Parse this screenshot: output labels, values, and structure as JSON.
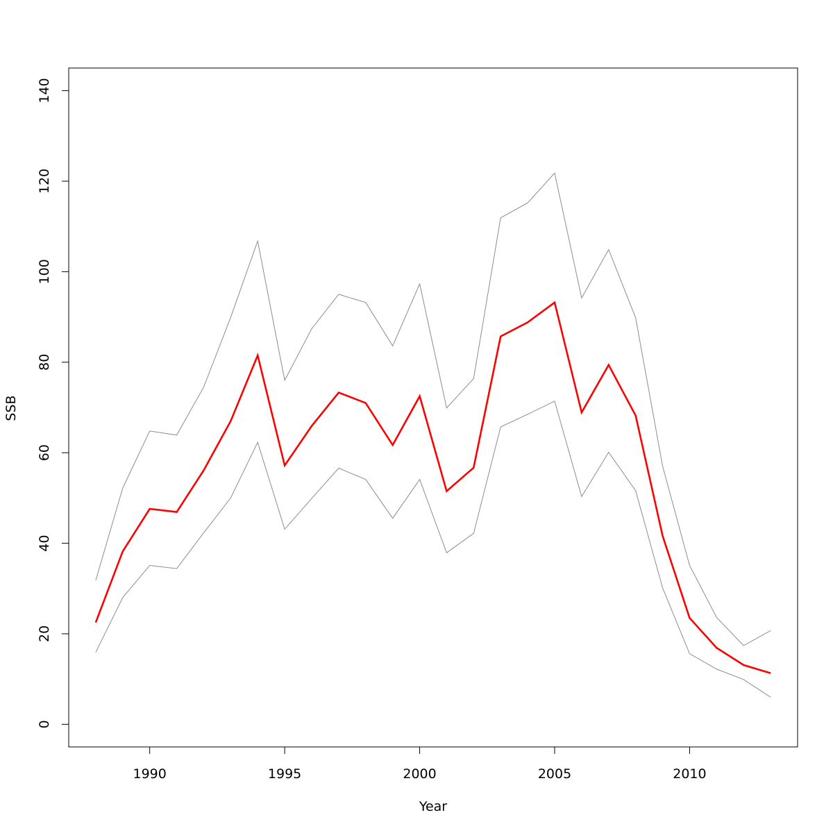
{
  "chart_data": {
    "type": "line",
    "title": "",
    "xlabel": "Year",
    "ylabel": "SSB",
    "xlim": [
      1987,
      2014
    ],
    "ylim": [
      -5,
      145
    ],
    "xticks": [
      1990,
      1995,
      2000,
      2005,
      2010
    ],
    "yticks": [
      0,
      20,
      40,
      60,
      80,
      100,
      120,
      140
    ],
    "grid": false,
    "legend": "none",
    "x": [
      1988,
      1989,
      1990,
      1991,
      1992,
      1993,
      1994,
      1995,
      1996,
      1997,
      1998,
      1999,
      2000,
      2001,
      2002,
      2003,
      2004,
      2005,
      2006,
      2007,
      2008,
      2009,
      2010,
      2011,
      2012,
      2013
    ],
    "series": [
      {
        "role": "upper",
        "color": "#8c8c8c",
        "values": [
          31.8,
          52.2,
          64.8,
          63.9,
          74.5,
          89.9,
          106.8,
          76.0,
          87.4,
          95.0,
          93.2,
          83.6,
          97.3,
          69.9,
          76.4,
          111.9,
          115.2,
          121.8,
          94.2,
          104.9,
          89.8,
          57.0,
          35.1,
          23.6,
          17.4,
          20.7
        ]
      },
      {
        "role": "estimate",
        "color": "#ff0000",
        "values": [
          22.5,
          38.2,
          47.6,
          46.9,
          56.1,
          67.0,
          81.5,
          57.2,
          65.9,
          73.3,
          71.0,
          61.7,
          72.5,
          51.5,
          56.7,
          85.7,
          88.8,
          93.2,
          68.9,
          79.4,
          68.2,
          41.6,
          23.5,
          16.9,
          13.1,
          11.3
        ]
      },
      {
        "role": "lower",
        "color": "#8c8c8c",
        "values": [
          15.9,
          28.0,
          35.1,
          34.4,
          42.3,
          50.0,
          62.3,
          43.1,
          49.9,
          56.6,
          54.1,
          45.5,
          54.1,
          37.9,
          42.2,
          65.7,
          68.5,
          71.4,
          50.3,
          60.1,
          51.6,
          30.1,
          15.6,
          12.2,
          9.9,
          6.0
        ]
      }
    ]
  }
}
